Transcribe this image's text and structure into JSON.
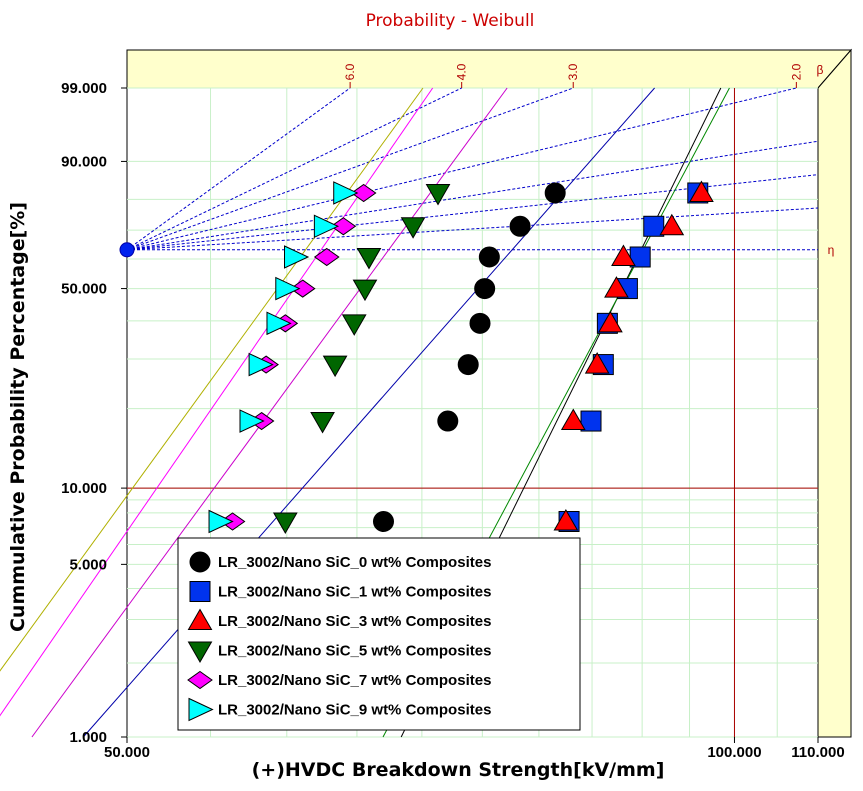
{
  "chart_data": {
    "type": "scatter",
    "title": "Probability - Weibull",
    "xlabel": "(+)HVDC Breakdown Strength[kV/mm]",
    "ylabel": "Cummulative Probability Percentage[%]",
    "xscale": "log",
    "yscale": "weibull",
    "xlim": [
      50,
      110
    ],
    "ylim": [
      1,
      99
    ],
    "x_ticks": [
      "50.000",
      "100.000",
      "110.000"
    ],
    "y_ticks": [
      {
        "label": "99.000",
        "value": 99
      },
      {
        "label": "90.000",
        "value": 90
      },
      {
        "label": "50.000",
        "value": 50
      },
      {
        "label": "10.000",
        "value": 10
      },
      {
        "label": "5.000",
        "value": 5
      },
      {
        "label": "1.000",
        "value": 1
      }
    ],
    "beta_axis": {
      "label": "β",
      "ticks": [
        "6.0",
        "4.0",
        "3.0",
        "2.0"
      ]
    },
    "eta_label": "η",
    "grid": true,
    "legend_position": "bottom-left",
    "series": [
      {
        "name": "LR_3002/Nano SiC_0 wt% Composites",
        "marker": "circle",
        "color": "#000000",
        "x": [
          67.0,
          72.1,
          73.8,
          74.8,
          75.2,
          75.6,
          78.3,
          81.5
        ],
        "y": [
          7.4,
          18.0,
          28.7,
          39.3,
          50.0,
          60.7,
          71.3,
          81.9
        ]
      },
      {
        "name": "LR_3002/Nano SiC_1 wt% Composites",
        "marker": "square",
        "color": "#0033ee",
        "x": [
          82.8,
          84.9,
          86.1,
          86.5,
          88.5,
          89.8,
          91.2,
          95.9
        ],
        "y": [
          7.4,
          18.0,
          28.7,
          39.3,
          50.0,
          60.7,
          71.3,
          81.9
        ]
      },
      {
        "name": "LR_3002/Nano SiC_3 wt% Composites",
        "marker": "triangle-up",
        "color": "#ff0000",
        "x": [
          82.5,
          83.2,
          85.5,
          86.8,
          87.4,
          88.1,
          93.1,
          96.3
        ],
        "y": [
          7.4,
          18.0,
          28.7,
          39.3,
          50.0,
          60.7,
          71.3,
          81.9
        ]
      },
      {
        "name": "LR_3002/Nano SiC_5 wt% Composites",
        "marker": "triangle-down",
        "color": "#006600",
        "x": [
          59.9,
          62.5,
          63.4,
          64.8,
          65.6,
          65.9,
          69.3,
          71.3
        ],
        "y": [
          7.4,
          18.0,
          28.7,
          39.3,
          50.0,
          60.7,
          71.3,
          81.9
        ]
      },
      {
        "name": "LR_3002/Nano SiC_7 wt% Composites",
        "marker": "diamond",
        "color": "#ff00ff",
        "x": [
          56.4,
          58.3,
          58.6,
          59.9,
          61.1,
          62.8,
          64.0,
          65.5
        ],
        "y": [
          7.4,
          18.0,
          28.7,
          39.3,
          50.0,
          60.7,
          71.3,
          81.9
        ]
      },
      {
        "name": "LR_3002/Nano SiC_9 wt% Composites",
        "marker": "triangle-right",
        "color": "#00ffff",
        "x": [
          55.6,
          57.6,
          58.2,
          59.4,
          60.0,
          60.6,
          62.7,
          64.1
        ],
        "y": [
          7.4,
          18.0,
          28.7,
          39.3,
          50.0,
          60.7,
          71.3,
          81.9
        ]
      }
    ],
    "fit_lines": [
      {
        "series": "LR_3002/Nano SiC_0 wt% Composites",
        "color": "#0000aa",
        "beta": 9.4,
        "eta": 77.6
      },
      {
        "series": "LR_3002/Nano SiC_1 wt% Composites",
        "color": "#000000",
        "beta": 16.8,
        "eta": 89.9
      },
      {
        "series": "LR_3002/Nano SiC_3 wt% Composites",
        "color": "#008800",
        "beta": 15.5,
        "eta": 90.1
      },
      {
        "series": "LR_3002/Nano SiC_5 wt% Composites",
        "color": "#cc00cc",
        "beta": 11.3,
        "eta": 67.4
      },
      {
        "series": "LR_3002/Nano SiC_7 wt% Composites",
        "color": "#ff00ff",
        "beta": 12.0,
        "eta": 62.4
      },
      {
        "series": "LR_3002/Nano SiC_9 wt% Composites",
        "color": "#b0b000",
        "beta": 11.4,
        "eta": 61.3
      }
    ]
  }
}
